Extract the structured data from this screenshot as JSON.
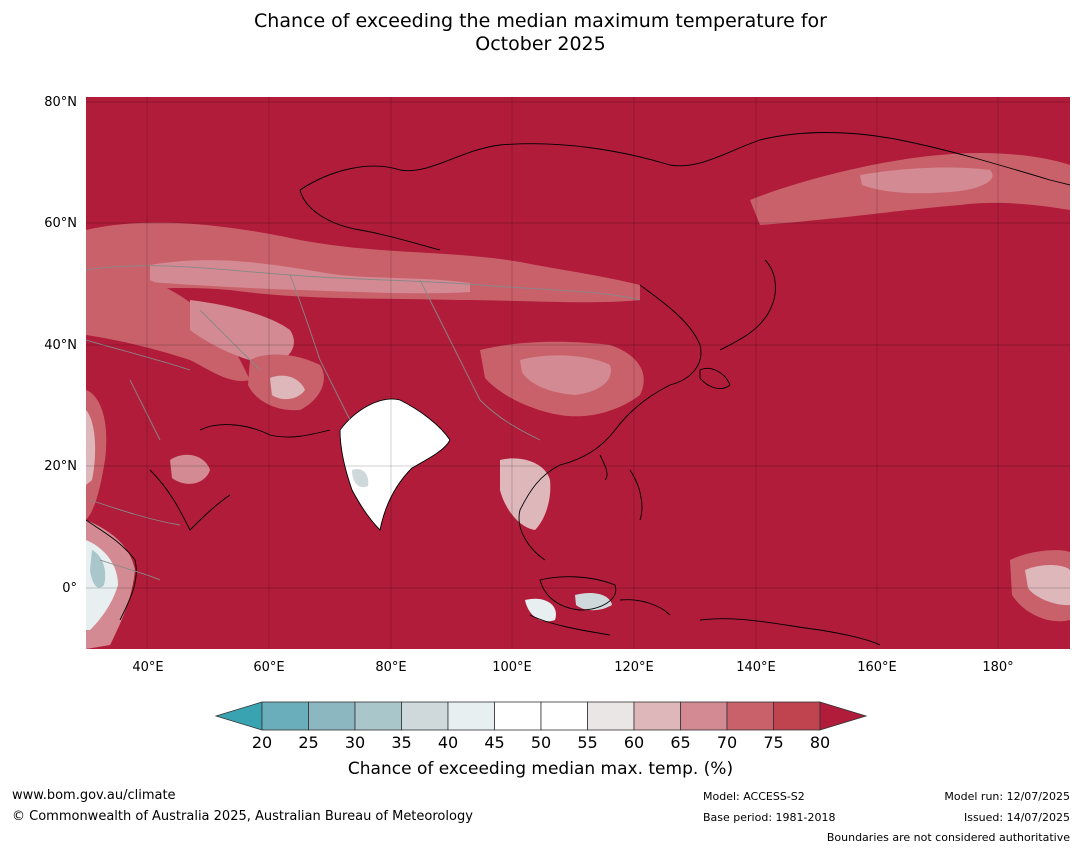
{
  "title": {
    "line1": "Chance of exceeding the median maximum temperature for",
    "line2": "October 2025"
  },
  "map": {
    "lat_labels": [
      "80°N",
      "60°N",
      "40°N",
      "20°N",
      "0°"
    ],
    "lon_labels": [
      "40°E",
      "60°E",
      "80°E",
      "100°E",
      "120°E",
      "140°E",
      "160°E",
      "180°"
    ],
    "colors": {
      "high": "#b01c3a",
      "c75": "#c0444f",
      "c70": "#c9616b",
      "c65": "#d38a92",
      "c60": "#deb7bb",
      "c55": "#ebe6e6",
      "neutral": "#ffffff",
      "c40": "#e8eff0",
      "c35": "#cfd9dc",
      "c30": "#a9c6cb",
      "c25": "#8cb6c0",
      "c20": "#6aadbb",
      "low": "#3aa3b1"
    }
  },
  "colorbar": {
    "ticks": [
      "20",
      "25",
      "30",
      "35",
      "40",
      "45",
      "50",
      "55",
      "60",
      "65",
      "70",
      "75",
      "80"
    ],
    "label": "Chance of exceeding median max. temp. (%)"
  },
  "footer": {
    "website": "www.bom.gov.au/climate",
    "copyright": "© Commonwealth of Australia 2025, Australian Bureau of Meteorology",
    "model": "Model: ACCESS-S2",
    "base_period": "Base period: 1981-2018",
    "model_run": "Model run: 12/07/2025",
    "issued": "Issued: 14/07/2025",
    "disclaimer": "Boundaries are not considered authoritative"
  }
}
